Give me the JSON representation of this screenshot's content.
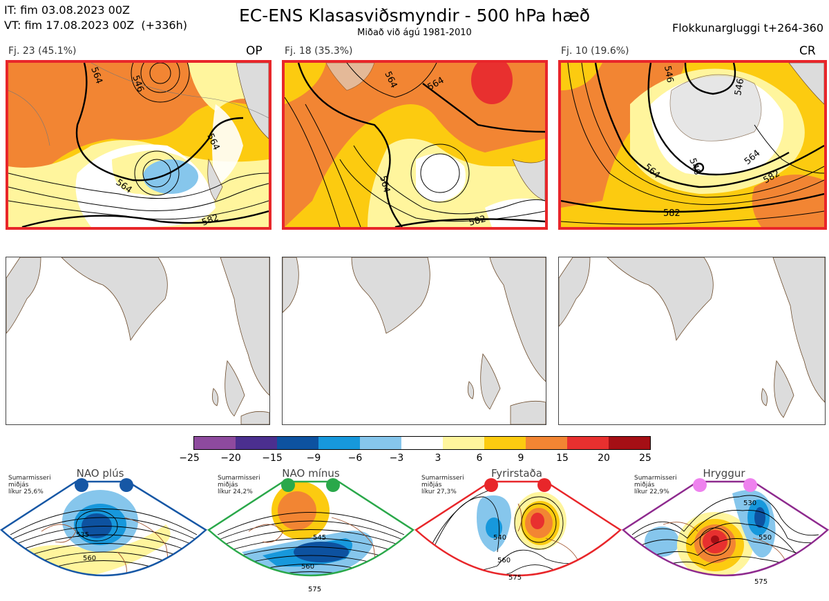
{
  "header": {
    "it_line": "IT: fim 03.08.2023 00Z",
    "vt_line": "VT: fim 17.08.2023 00Z  (+336h)",
    "title": "EC-ENS Klasasviðsmyndir - 500 hPa hæð",
    "subtitle": "Miðað við ágú 1981-2010",
    "window": "Flokkunargluggi t+264-360"
  },
  "panels": [
    {
      "label": "Fj. 23 (45.1%)",
      "tag": "OP",
      "contours": [
        "546",
        "564",
        "564",
        "564",
        "582"
      ]
    },
    {
      "label": "Fj. 18 (35.3%)",
      "tag": "",
      "contours": [
        "564",
        "564",
        "564",
        "582"
      ]
    },
    {
      "label": "Fj. 10 (19.6%)",
      "tag": "CR",
      "contours": [
        "546",
        "546",
        "546",
        "564",
        "564",
        "582",
        "582"
      ]
    }
  ],
  "colorbar": {
    "ticks": [
      "−25",
      "−20",
      "−15",
      "−9",
      "−6",
      "−3",
      "3",
      "6",
      "9",
      "15",
      "20",
      "25"
    ],
    "colors": [
      "#8e4a9e",
      "#4b2f8f",
      "#0d52a0",
      "#1798dc",
      "#86c6ec",
      "#ffffff",
      "#fff59d",
      "#fccb10",
      "#f28533",
      "#e8302f",
      "#a50f15"
    ]
  },
  "regimes": [
    {
      "title": "NAO plús",
      "text": "Sumarmisseri\nmiðjás\nlíkur 25,6%",
      "contours": [
        "535",
        "560"
      ],
      "border": "#1657a5",
      "dot": "#1657a5"
    },
    {
      "title": "NAO mínus",
      "text": "Sumarmisseri\nmiðjás\nlíkur 24,2%",
      "contours": [
        "545",
        "560",
        "575"
      ],
      "border": "#2aa84a",
      "dot": "#2aa84a"
    },
    {
      "title": "Fyrirstaða",
      "text": "Sumarmisseri\nmiðjás\nlíkur 27,3%",
      "contours": [
        "540",
        "560",
        "575"
      ],
      "border": "#e8262a",
      "dot": "#e8262a"
    },
    {
      "title": "Hryggur",
      "text": "Sumarmisseri\nmiðjás\nlíkur 22,9%",
      "contours": [
        "530",
        "550",
        "575"
      ],
      "border": "#8e2a8e",
      "dot": "#ee82ee"
    }
  ]
}
